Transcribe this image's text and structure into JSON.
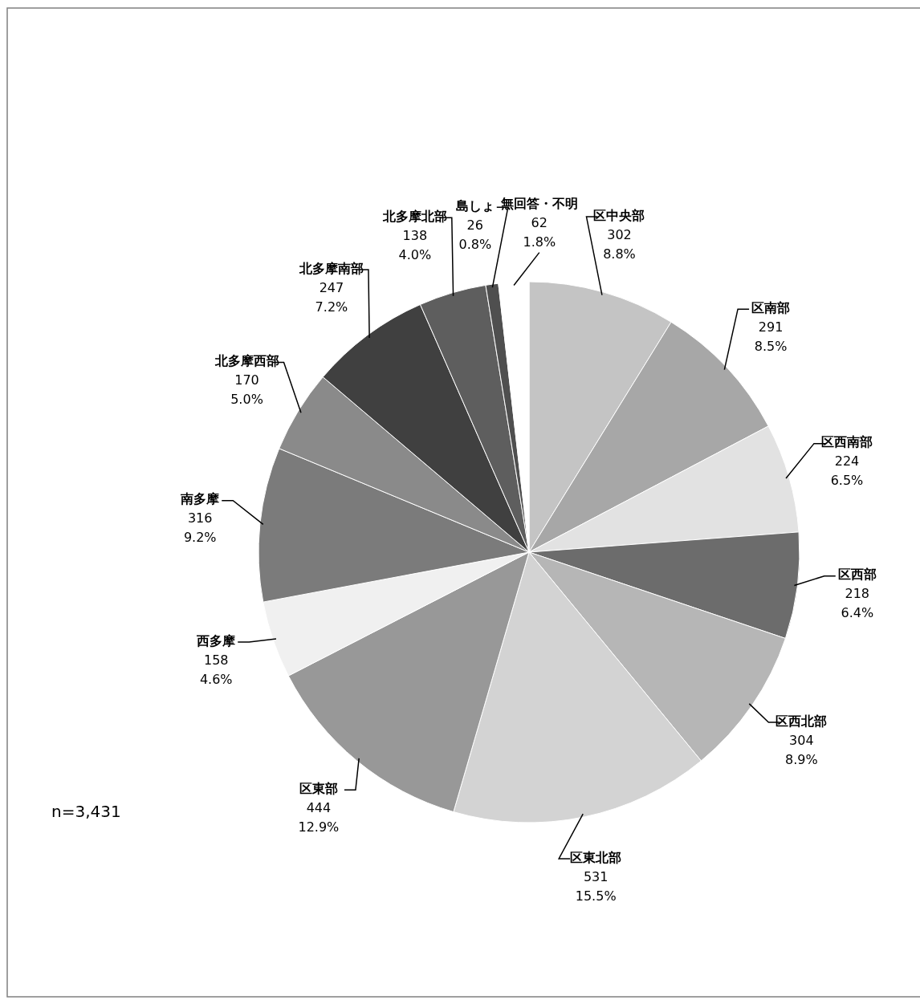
{
  "chart_data": {
    "type": "pie",
    "categories": [
      "区中央部",
      "区南部",
      "区西南部",
      "区西部",
      "区西北部",
      "区東北部",
      "区東部",
      "西多摩",
      "南多摩",
      "北多摩西部",
      "北多摩南部",
      "北多摩北部",
      "島しょ",
      "無回答・不明"
    ],
    "values": [
      302,
      291,
      224,
      218,
      304,
      531,
      444,
      158,
      316,
      170,
      247,
      138,
      26,
      62
    ],
    "colors": [
      "#c4c4c4",
      "#a7a7a7",
      "#e2e2e2",
      "#6c6c6c",
      "#b6b6b6",
      "#d3d3d3",
      "#989898",
      "#f0f0f0",
      "#7b7b7b",
      "#8a8a8a",
      "#404040",
      "#5e5e5e",
      "#4f4f4f",
      "#ffffff"
    ],
    "value_labels": [
      "302\n8.8%",
      "291\n8.5%",
      "224\n6.5%",
      "218\n6.4%",
      "304\n8.9%",
      "531\n15.5%",
      "444\n12.9%",
      "158\n4.6%",
      "316\n9.2%",
      "170\n5.0%",
      "247\n7.2%",
      "138\n4.0%",
      "26\n0.8%",
      "62\n1.8%"
    ],
    "annotations": [
      "n=3,431"
    ]
  }
}
